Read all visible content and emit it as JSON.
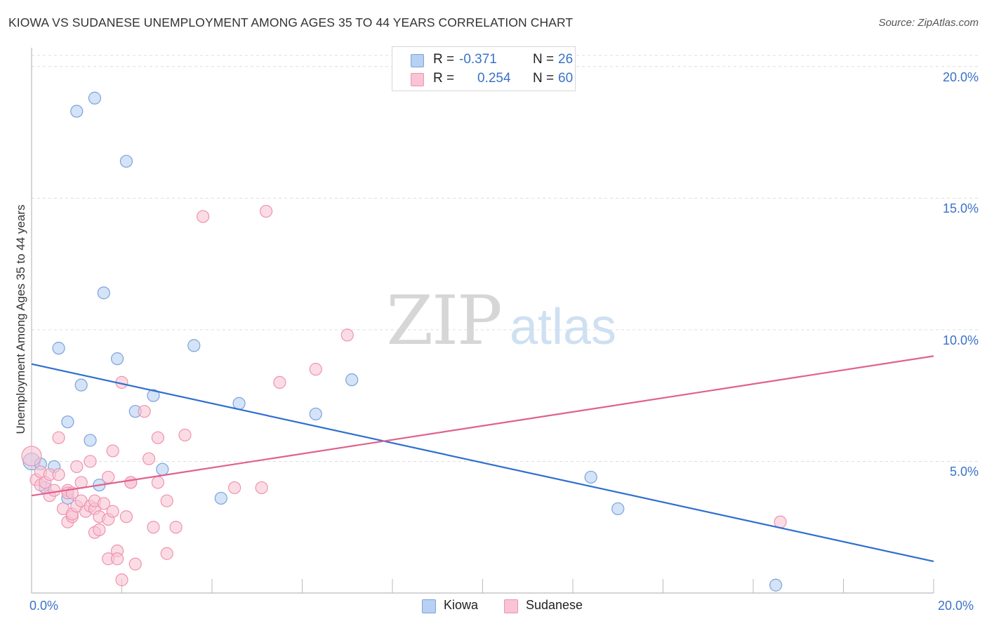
{
  "title": "KIOWA VS SUDANESE UNEMPLOYMENT AMONG AGES 35 TO 44 YEARS CORRELATION CHART",
  "source": "Source: ZipAtlas.com",
  "watermark": {
    "zip": "ZIP",
    "atlas": "atlas"
  },
  "legend": {
    "r_label": "R =",
    "n_label": "N =",
    "kiowa": {
      "r": "-0.371",
      "n": "26"
    },
    "sudanese": {
      "r": "0.254",
      "n": "60"
    }
  },
  "colors": {
    "kiowa_fill": "#b8d0f2",
    "kiowa_stroke": "#7aa3dc",
    "kiowa_line": "#2e6fcf",
    "sudanese_fill": "#f9c4d4",
    "sudanese_stroke": "#ee93b0",
    "sudanese_line": "#e0608e",
    "tick_label": "#3a72c8"
  },
  "chart_data": {
    "type": "scatter",
    "title": "KIOWA VS SUDANESE UNEMPLOYMENT AMONG AGES 35 TO 44 YEARS CORRELATION CHART",
    "xlabel": "",
    "ylabel": "Unemployment Among Ages 35 to 44 years",
    "xlim": [
      0,
      20
    ],
    "ylim": [
      0,
      20.5
    ],
    "x_tick_labels": {
      "left": "0.0%",
      "right": "20.0%"
    },
    "y_ticks": [
      {
        "value": 5,
        "label": "5.0%"
      },
      {
        "value": 10,
        "label": "10.0%"
      },
      {
        "value": 15,
        "label": "15.0%"
      },
      {
        "value": 20,
        "label": "20.0%"
      }
    ],
    "grid": true,
    "legend_position": "top-center",
    "series": [
      {
        "name": "Kiowa",
        "r": -0.371,
        "n": 26,
        "trend": {
          "x": [
            0,
            20
          ],
          "y": [
            8.7,
            1.2
          ]
        },
        "points": [
          [
            0.0,
            5.0
          ],
          [
            0.2,
            4.9
          ],
          [
            0.3,
            4.0
          ],
          [
            0.5,
            4.8
          ],
          [
            0.6,
            9.3
          ],
          [
            0.8,
            3.6
          ],
          [
            0.8,
            6.5
          ],
          [
            1.1,
            7.9
          ],
          [
            1.0,
            18.3
          ],
          [
            1.3,
            5.8
          ],
          [
            1.4,
            18.8
          ],
          [
            1.5,
            4.1
          ],
          [
            1.6,
            11.4
          ],
          [
            1.9,
            8.9
          ],
          [
            2.1,
            16.4
          ],
          [
            2.3,
            6.9
          ],
          [
            2.7,
            7.5
          ],
          [
            2.9,
            4.7
          ],
          [
            3.6,
            9.4
          ],
          [
            4.2,
            3.6
          ],
          [
            4.6,
            7.2
          ],
          [
            6.3,
            6.8
          ],
          [
            7.1,
            8.1
          ],
          [
            12.4,
            4.4
          ],
          [
            13.0,
            3.2
          ],
          [
            16.5,
            0.3
          ]
        ]
      },
      {
        "name": "Sudanese",
        "r": 0.254,
        "n": 60,
        "trend": {
          "x": [
            0,
            20
          ],
          "y": [
            3.7,
            9.0
          ]
        },
        "points": [
          [
            0.0,
            5.2
          ],
          [
            0.1,
            4.3
          ],
          [
            0.2,
            4.6
          ],
          [
            0.2,
            4.1
          ],
          [
            0.3,
            4.2
          ],
          [
            0.4,
            4.5
          ],
          [
            0.4,
            3.7
          ],
          [
            0.5,
            3.9
          ],
          [
            0.6,
            5.9
          ],
          [
            0.6,
            4.5
          ],
          [
            0.7,
            3.2
          ],
          [
            0.8,
            3.9
          ],
          [
            0.8,
            3.8
          ],
          [
            0.8,
            2.7
          ],
          [
            0.9,
            2.9
          ],
          [
            0.9,
            3.0
          ],
          [
            1.0,
            3.3
          ],
          [
            1.0,
            4.8
          ],
          [
            1.1,
            4.2
          ],
          [
            1.1,
            3.5
          ],
          [
            1.2,
            3.1
          ],
          [
            1.3,
            5.0
          ],
          [
            1.3,
            3.3
          ],
          [
            1.4,
            2.3
          ],
          [
            1.4,
            3.2
          ],
          [
            1.4,
            3.5
          ],
          [
            1.5,
            2.4
          ],
          [
            1.5,
            2.9
          ],
          [
            1.6,
            3.4
          ],
          [
            1.7,
            1.3
          ],
          [
            1.7,
            2.8
          ],
          [
            1.7,
            4.4
          ],
          [
            1.8,
            3.1
          ],
          [
            1.8,
            5.4
          ],
          [
            1.9,
            1.6
          ],
          [
            1.9,
            1.3
          ],
          [
            2.0,
            0.5
          ],
          [
            2.0,
            8.0
          ],
          [
            2.1,
            2.9
          ],
          [
            2.2,
            4.2
          ],
          [
            2.3,
            1.1
          ],
          [
            2.5,
            6.9
          ],
          [
            2.6,
            5.1
          ],
          [
            2.7,
            2.5
          ],
          [
            2.8,
            4.2
          ],
          [
            2.8,
            5.9
          ],
          [
            3.0,
            3.5
          ],
          [
            3.0,
            1.5
          ],
          [
            3.2,
            2.5
          ],
          [
            3.4,
            6.0
          ],
          [
            3.8,
            14.3
          ],
          [
            4.5,
            4.0
          ],
          [
            5.1,
            4.0
          ],
          [
            5.2,
            14.5
          ],
          [
            5.5,
            8.0
          ],
          [
            6.3,
            8.5
          ],
          [
            7.0,
            9.8
          ],
          [
            16.6,
            2.7
          ],
          [
            2.2,
            4.2
          ],
          [
            0.9,
            3.8
          ]
        ]
      }
    ]
  },
  "bottom_legend": [
    {
      "name": "Kiowa"
    },
    {
      "name": "Sudanese"
    }
  ]
}
